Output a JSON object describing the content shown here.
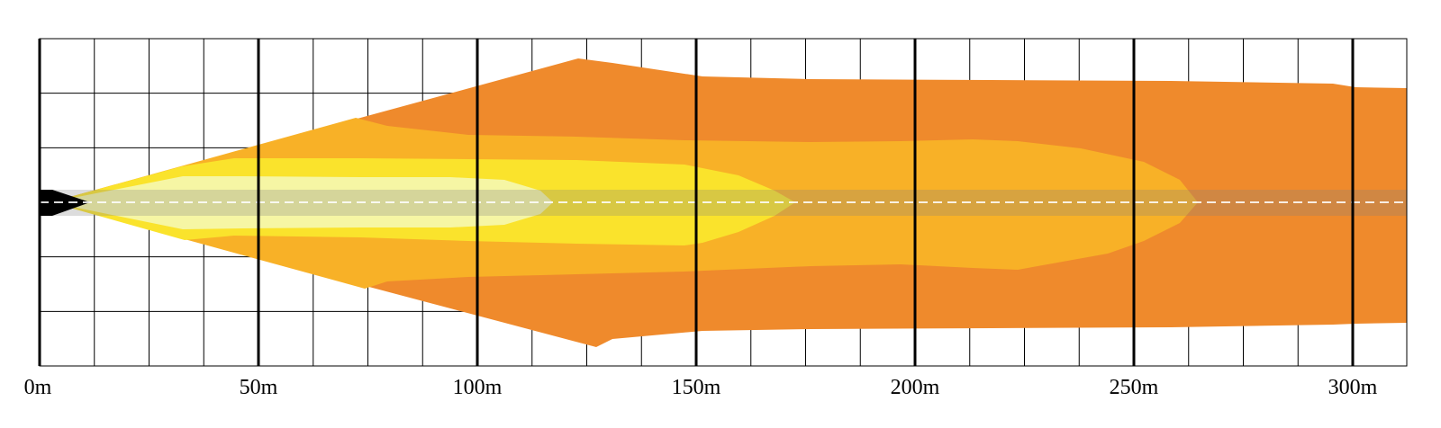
{
  "diagram": {
    "type": "light-beam-distance-pattern",
    "distance_unit": "m",
    "x_range": [
      0,
      312
    ],
    "x_major_step": 50,
    "x_minor_step": 12.5,
    "tick_labels": [
      "0m",
      "50m",
      "100m",
      "150m",
      "200m",
      "250m",
      "300m"
    ],
    "grid": true,
    "zones": [
      {
        "zone": "outer",
        "color": "#EF8A2C",
        "max_distance": 312
      },
      {
        "zone": "third",
        "color": "#F8B127",
        "max_distance": 265
      },
      {
        "zone": "second",
        "color": "#FAE32C",
        "max_distance": 173
      },
      {
        "zone": "inner",
        "color": "#F6F6A4",
        "max_distance": 117
      }
    ],
    "colors": {
      "background": "#FFFFFF",
      "grid_line": "#000000",
      "center_band": "rgba(128,128,128,0.28)",
      "center_dash": "#FFFFFF",
      "source_marker": "#000000"
    }
  }
}
